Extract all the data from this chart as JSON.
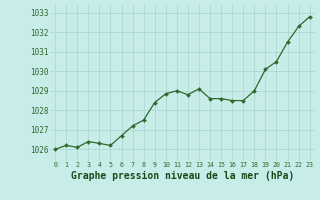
{
  "x": [
    0,
    1,
    2,
    3,
    4,
    5,
    6,
    7,
    8,
    9,
    10,
    11,
    12,
    13,
    14,
    15,
    16,
    17,
    18,
    19,
    20,
    21,
    22,
    23
  ],
  "y": [
    1026.0,
    1026.2,
    1026.1,
    1026.4,
    1026.3,
    1026.2,
    1026.7,
    1027.2,
    1027.5,
    1028.4,
    1028.85,
    1029.0,
    1028.8,
    1029.1,
    1028.6,
    1028.6,
    1028.5,
    1028.5,
    1029.0,
    1030.1,
    1030.5,
    1031.5,
    1032.3,
    1032.8
  ],
  "line_color": "#2d6a2d",
  "marker": "D",
  "marker_size": 2.0,
  "bg_color": "#c8ece8",
  "grid_color": "#a8d4cc",
  "xlabel": "Graphe pression niveau de la mer (hPa)",
  "xlabel_color": "#1a4a1a",
  "tick_color": "#2d6a2d",
  "ylim": [
    1025.4,
    1033.4
  ],
  "yticks": [
    1026,
    1027,
    1028,
    1029,
    1030,
    1031,
    1032,
    1033
  ],
  "xticks": [
    0,
    1,
    2,
    3,
    4,
    5,
    6,
    7,
    8,
    9,
    10,
    11,
    12,
    13,
    14,
    15,
    16,
    17,
    18,
    19,
    20,
    21,
    22,
    23
  ],
  "xlabel_fontsize": 7.0,
  "ytick_fontsize": 5.5,
  "xtick_fontsize": 4.8
}
